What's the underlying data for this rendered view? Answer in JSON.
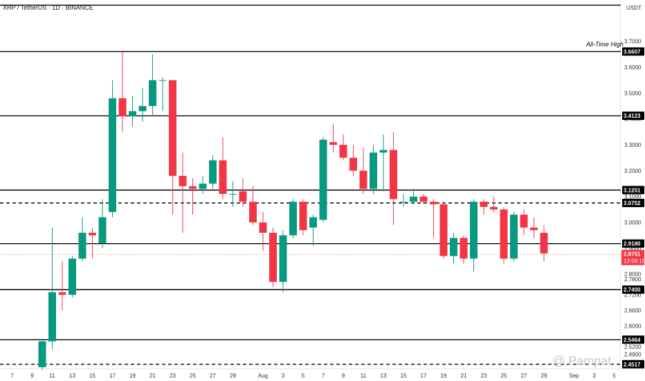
{
  "header": {
    "title": "XRP / TetherUS · 1D · BINANCE",
    "currency": "USDT"
  },
  "annotation": "All-Time High",
  "watermark": "@ Pampat",
  "current_price": {
    "price": "2.8751",
    "countdown": "13:58:15"
  },
  "colors": {
    "up": "#089981",
    "down": "#f23645",
    "level_line": "#000000",
    "label_bg": "#000000",
    "price_label_bg": "#f23645"
  },
  "chart_data": {
    "type": "candlestick",
    "title": "XRP / TetherUS · 1D · BINANCE",
    "ylabel": "USDT",
    "ylim": [
      2.435,
      3.86
    ],
    "grid": false,
    "y_ticks": [
      "3.7000",
      "3.6000",
      "3.5000",
      "3.4000",
      "3.3000",
      "3.2000",
      "3.1000",
      "3.0000",
      "2.9000",
      "2.8000",
      "2.7800",
      "2.7200",
      "2.6600",
      "2.6000",
      "2.5200",
      "2.4900"
    ],
    "x_ticks": [
      "7",
      "9",
      "11",
      "13",
      "15",
      "17",
      "19",
      "21",
      "23",
      "25",
      "27",
      "29",
      "Aug",
      "3",
      "5",
      "7",
      "9",
      "11",
      "13",
      "15",
      "17",
      "19",
      "21",
      "23",
      "25",
      "27",
      "29",
      "Sep",
      "3",
      "5"
    ],
    "levels": [
      {
        "value": 3.84,
        "label": "",
        "style": "solid"
      },
      {
        "value": 3.6607,
        "label": "3.6607",
        "style": "solid"
      },
      {
        "value": 3.4123,
        "label": "3.4123",
        "style": "solid"
      },
      {
        "value": 3.1251,
        "label": "3.1251",
        "style": "solid"
      },
      {
        "value": 3.0752,
        "label": "3.0752",
        "style": "dashed"
      },
      {
        "value": 2.918,
        "label": "2.9180",
        "style": "solid"
      },
      {
        "value": 2.74,
        "label": "2.7400",
        "style": "solid"
      },
      {
        "value": 2.5464,
        "label": "2.5464",
        "style": "solid"
      },
      {
        "value": 2.4517,
        "label": "2.4517",
        "style": "dashed"
      }
    ],
    "candles": [
      {
        "date": "Jul 10",
        "open": 2.44,
        "high": 2.55,
        "low": 2.43,
        "close": 2.54
      },
      {
        "date": "Jul 11",
        "open": 2.54,
        "high": 2.98,
        "low": 2.51,
        "close": 2.73
      },
      {
        "date": "Jul 12",
        "open": 2.73,
        "high": 2.85,
        "low": 2.66,
        "close": 2.72
      },
      {
        "date": "Jul 13",
        "open": 2.72,
        "high": 2.87,
        "low": 2.71,
        "close": 2.86
      },
      {
        "date": "Jul 14",
        "open": 2.86,
        "high": 3.02,
        "low": 2.85,
        "close": 2.96
      },
      {
        "date": "Jul 15",
        "open": 2.96,
        "high": 2.98,
        "low": 2.86,
        "close": 2.95
      },
      {
        "date": "Jul 16",
        "open": 2.92,
        "high": 3.09,
        "low": 2.9,
        "close": 3.02
      },
      {
        "date": "Jul 17",
        "open": 3.04,
        "high": 3.55,
        "low": 3.02,
        "close": 3.48
      },
      {
        "date": "Jul 18",
        "open": 3.48,
        "high": 3.66,
        "low": 3.35,
        "close": 3.41
      },
      {
        "date": "Jul 19",
        "open": 3.41,
        "high": 3.49,
        "low": 3.37,
        "close": 3.43
      },
      {
        "date": "Jul 20",
        "open": 3.43,
        "high": 3.52,
        "low": 3.39,
        "close": 3.45
      },
      {
        "date": "Jul 21",
        "open": 3.45,
        "high": 3.65,
        "low": 3.41,
        "close": 3.55
      },
      {
        "date": "Jul 22",
        "open": 3.55,
        "high": 3.56,
        "low": 3.43,
        "close": 3.55
      },
      {
        "date": "Jul 23",
        "open": 3.55,
        "high": 3.55,
        "low": 3.03,
        "close": 3.18
      },
      {
        "date": "Jul 24",
        "open": 3.18,
        "high": 3.27,
        "low": 2.96,
        "close": 3.14
      },
      {
        "date": "Jul 25",
        "open": 3.14,
        "high": 3.17,
        "low": 3.03,
        "close": 3.13
      },
      {
        "date": "Jul 26",
        "open": 3.13,
        "high": 3.18,
        "low": 3.11,
        "close": 3.15
      },
      {
        "date": "Jul 27",
        "open": 3.15,
        "high": 3.26,
        "low": 3.13,
        "close": 3.24
      },
      {
        "date": "Jul 28",
        "open": 3.24,
        "high": 3.33,
        "low": 3.09,
        "close": 3.11
      },
      {
        "date": "Jul 29",
        "open": 3.11,
        "high": 3.16,
        "low": 3.06,
        "close": 3.11
      },
      {
        "date": "Jul 30",
        "open": 3.12,
        "high": 3.17,
        "low": 3.06,
        "close": 3.08
      },
      {
        "date": "Jul 31",
        "open": 3.08,
        "high": 3.14,
        "low": 2.99,
        "close": 3.0
      },
      {
        "date": "Aug 1",
        "open": 3.0,
        "high": 3.04,
        "low": 2.89,
        "close": 2.96
      },
      {
        "date": "Aug 2",
        "open": 2.96,
        "high": 2.98,
        "low": 2.75,
        "close": 2.77
      },
      {
        "date": "Aug 3",
        "open": 2.77,
        "high": 2.97,
        "low": 2.73,
        "close": 2.95
      },
      {
        "date": "Aug 4",
        "open": 2.95,
        "high": 3.09,
        "low": 2.94,
        "close": 3.08
      },
      {
        "date": "Aug 5",
        "open": 3.08,
        "high": 3.09,
        "low": 2.95,
        "close": 2.97
      },
      {
        "date": "Aug 6",
        "open": 2.98,
        "high": 3.03,
        "low": 2.91,
        "close": 3.02
      },
      {
        "date": "Aug 7",
        "open": 3.01,
        "high": 3.33,
        "low": 3.0,
        "close": 3.32
      },
      {
        "date": "Aug 8",
        "open": 3.31,
        "high": 3.38,
        "low": 3.27,
        "close": 3.3
      },
      {
        "date": "Aug 9",
        "open": 3.3,
        "high": 3.34,
        "low": 3.24,
        "close": 3.25
      },
      {
        "date": "Aug 10",
        "open": 3.25,
        "high": 3.3,
        "low": 3.18,
        "close": 3.2
      },
      {
        "date": "Aug 11",
        "open": 3.2,
        "high": 3.29,
        "low": 3.11,
        "close": 3.13
      },
      {
        "date": "Aug 12",
        "open": 3.13,
        "high": 3.3,
        "low": 3.11,
        "close": 3.27
      },
      {
        "date": "Aug 13",
        "open": 3.27,
        "high": 3.34,
        "low": 3.12,
        "close": 3.28
      },
      {
        "date": "Aug 14",
        "open": 3.28,
        "high": 3.35,
        "low": 2.99,
        "close": 3.09
      },
      {
        "date": "Aug 15",
        "open": 3.08,
        "high": 3.11,
        "low": 3.06,
        "close": 3.08
      },
      {
        "date": "Aug 16",
        "open": 3.08,
        "high": 3.13,
        "low": 3.07,
        "close": 3.1
      },
      {
        "date": "Aug 17",
        "open": 3.1,
        "high": 3.11,
        "low": 3.07,
        "close": 3.08
      },
      {
        "date": "Aug 18",
        "open": 3.08,
        "high": 3.09,
        "low": 2.94,
        "close": 3.07
      },
      {
        "date": "Aug 19",
        "open": 3.07,
        "high": 3.08,
        "low": 2.86,
        "close": 2.87
      },
      {
        "date": "Aug 20",
        "open": 2.87,
        "high": 2.96,
        "low": 2.84,
        "close": 2.94
      },
      {
        "date": "Aug 21",
        "open": 2.94,
        "high": 2.95,
        "low": 2.84,
        "close": 2.86
      },
      {
        "date": "Aug 22",
        "open": 2.86,
        "high": 3.09,
        "low": 2.81,
        "close": 3.08
      },
      {
        "date": "Aug 23",
        "open": 3.08,
        "high": 3.09,
        "low": 3.03,
        "close": 3.06
      },
      {
        "date": "Aug 24",
        "open": 3.06,
        "high": 3.1,
        "low": 3.04,
        "close": 3.05
      },
      {
        "date": "Aug 25",
        "open": 3.05,
        "high": 3.06,
        "low": 2.84,
        "close": 2.86
      },
      {
        "date": "Aug 26",
        "open": 2.86,
        "high": 3.04,
        "low": 2.85,
        "close": 3.03
      },
      {
        "date": "Aug 27",
        "open": 3.03,
        "high": 3.05,
        "low": 2.95,
        "close": 2.98
      },
      {
        "date": "Aug 28",
        "open": 2.98,
        "high": 3.02,
        "low": 2.94,
        "close": 2.97
      },
      {
        "date": "Aug 29",
        "open": 2.96,
        "high": 2.99,
        "low": 2.85,
        "close": 2.88
      }
    ]
  }
}
